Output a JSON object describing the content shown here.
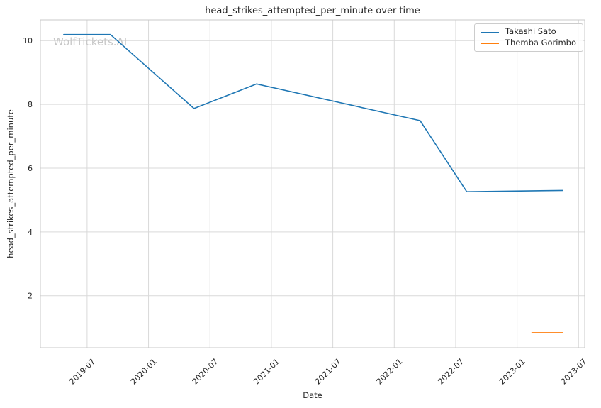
{
  "watermark": "WolfTickets.AI",
  "chart_data": {
    "type": "line",
    "title": "head_strikes_attempted_per_minute over time",
    "xlabel": "Date",
    "ylabel": "head_strikes_attempted_per_minute",
    "xlim": [
      2019.12,
      2023.55
    ],
    "ylim": [
      0.37,
      10.65
    ],
    "grid": true,
    "legend_position": "upper right",
    "x_ticks": [
      {
        "value": 2019.5,
        "label": "2019-07"
      },
      {
        "value": 2020.0,
        "label": "2020-01"
      },
      {
        "value": 2020.5,
        "label": "2020-07"
      },
      {
        "value": 2021.0,
        "label": "2021-01"
      },
      {
        "value": 2021.5,
        "label": "2021-07"
      },
      {
        "value": 2022.0,
        "label": "2022-01"
      },
      {
        "value": 2022.5,
        "label": "2022-07"
      },
      {
        "value": 2023.0,
        "label": "2023-01"
      },
      {
        "value": 2023.5,
        "label": "2023-07"
      }
    ],
    "y_ticks": [
      2,
      4,
      6,
      8,
      10
    ],
    "series": [
      {
        "name": "Takashi Sato",
        "color": "#1f77b4",
        "points": [
          {
            "date": "2019-04",
            "x": 2019.31,
            "value": 10.19
          },
          {
            "date": "2019-09",
            "x": 2019.69,
            "value": 10.19
          },
          {
            "date": "2020-05",
            "x": 2020.37,
            "value": 7.87
          },
          {
            "date": "2020-11",
            "x": 2020.88,
            "value": 8.64
          },
          {
            "date": "2022-03",
            "x": 2022.21,
            "value": 7.49
          },
          {
            "date": "2022-08",
            "x": 2022.59,
            "value": 5.26
          },
          {
            "date": "2023-05",
            "x": 2023.37,
            "value": 5.3
          }
        ]
      },
      {
        "name": "Themba Gorimbo",
        "color": "#ff7f0e",
        "points": [
          {
            "date": "2023-02",
            "x": 2023.12,
            "value": 0.84
          },
          {
            "date": "2023-05",
            "x": 2023.37,
            "value": 0.84
          }
        ]
      }
    ],
    "theme": {
      "grid_color": "#d9d9d9",
      "spine_color": "#c8c8c8",
      "text_color": "#262626",
      "watermark_color": "#c7c7c7"
    }
  }
}
